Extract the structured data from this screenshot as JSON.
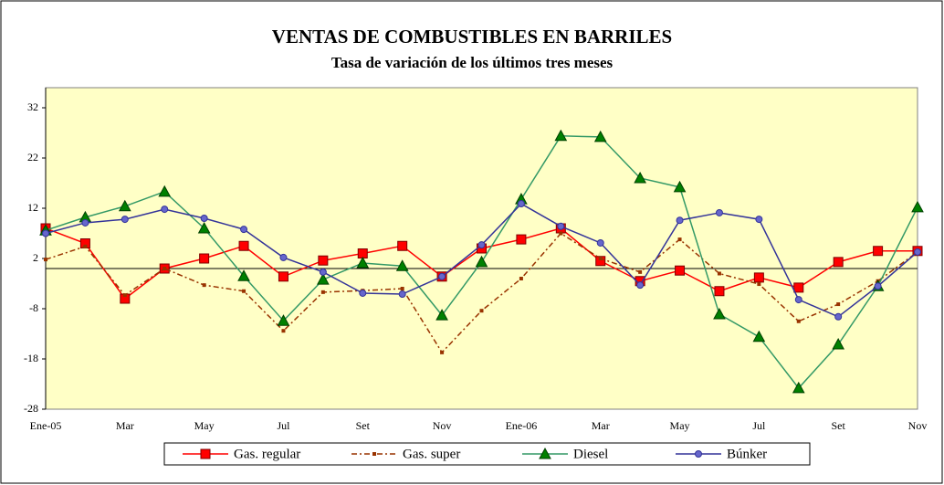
{
  "chart_data": {
    "type": "line",
    "title": "VENTAS DE COMBUSTIBLES EN BARRILES",
    "subtitle": "Tasa de variación de los últimos tres meses",
    "categories": [
      "Ene-05",
      null,
      "Mar",
      null,
      "May",
      null,
      "Jul",
      null,
      "Set",
      null,
      "Nov",
      null,
      "Ene-06",
      null,
      "Mar",
      null,
      "May",
      null,
      "Jul",
      null,
      "Set",
      null,
      "Nov"
    ],
    "ylim": [
      -28,
      32
    ],
    "yticks": [
      -28,
      -18,
      -8,
      2,
      12,
      22,
      32
    ],
    "grid": false,
    "series": [
      {
        "name": "Gas. regular",
        "color": "#ff0000",
        "marker": "square",
        "dash": "solid",
        "values": [
          8,
          5,
          -6,
          0,
          2,
          4.5,
          -1.6,
          1.6,
          3,
          4.5,
          -1.6,
          4,
          5.8,
          8,
          1.5,
          -2.5,
          -0.4,
          -4.5,
          -1.8,
          -3.8,
          1.3,
          3.5,
          3.5
        ]
      },
      {
        "name": "Gas. super",
        "color": "#993300",
        "marker": "small-square",
        "dash": "dashdot",
        "values": [
          1.8,
          4.4,
          -5.3,
          0,
          -3.3,
          -4.5,
          -12.4,
          -4.7,
          -4.4,
          -4,
          -16.7,
          -8.4,
          -2,
          7,
          2,
          -0.7,
          5.8,
          -1,
          -3.1,
          -10.5,
          -7.1,
          -2.5,
          3.3
        ]
      },
      {
        "name": "Diesel",
        "color": "#339966",
        "marker": "triangle",
        "dash": "solid",
        "values": [
          7.6,
          10.2,
          12.4,
          15.3,
          8,
          -1.5,
          -10.4,
          -2.2,
          1.1,
          0.5,
          -9.3,
          1.3,
          13.8,
          26.4,
          26.2,
          18,
          16.2,
          -9.1,
          -13.6,
          -23.8,
          -15.1,
          -3.5,
          12.2
        ]
      },
      {
        "name": "Búnker",
        "color": "#333399",
        "marker": "circle",
        "dash": "solid",
        "values": [
          7,
          9.1,
          9.8,
          11.8,
          10,
          7.8,
          2.2,
          -0.7,
          -4.9,
          -5.1,
          -1.6,
          4.7,
          12.9,
          8.4,
          5.1,
          -3.3,
          9.6,
          11.1,
          9.8,
          -6.2,
          -9.6,
          -3.5,
          3.3
        ]
      }
    ]
  }
}
